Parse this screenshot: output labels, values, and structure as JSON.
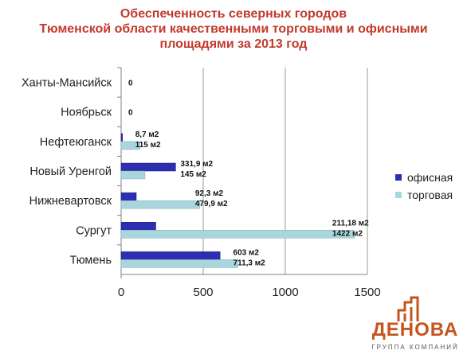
{
  "chart_data": {
    "type": "bar",
    "orientation": "horizontal",
    "title_lines": [
      "Обеспеченность северных городов",
      "Тюменской области качественными торговыми и офисными",
      "площадями за 2013 год"
    ],
    "categories": [
      "Ханты-Мансийск",
      "Ноябрьск",
      "Нефтеюганск",
      "Новый Уренгой",
      "Нижневартовск",
      "Сургут",
      "Тюмень"
    ],
    "series": [
      {
        "name": "офисная",
        "color": "#2e2eb0",
        "values": [
          0,
          0,
          8.7,
          331.9,
          92.3,
          211.18,
          603
        ],
        "labels": [
          "0",
          "0",
          "8,7 м2",
          "331,9 м2",
          "92,3 м2",
          "211,18 м2",
          "603 м2"
        ]
      },
      {
        "name": "торговая",
        "color": "#a8d6dc",
        "values": [
          0,
          0,
          115,
          145,
          479.9,
          1422,
          711.3
        ],
        "labels": [
          "",
          "",
          "115 м2",
          "145 м2",
          "479,9 м2",
          "1422 м2",
          "711,3 м2"
        ]
      }
    ],
    "xlim": [
      0,
      1500
    ],
    "xticks": [
      0,
      500,
      1000,
      1500
    ],
    "xtick_labels": [
      "0",
      "500",
      "1000",
      "1500"
    ],
    "grid": "vertical",
    "legend": "right"
  },
  "logo": {
    "word": "ДЕНОВА",
    "subtitle": "ГРУППА КОМПАНИЙ",
    "color": "#c7541f"
  }
}
